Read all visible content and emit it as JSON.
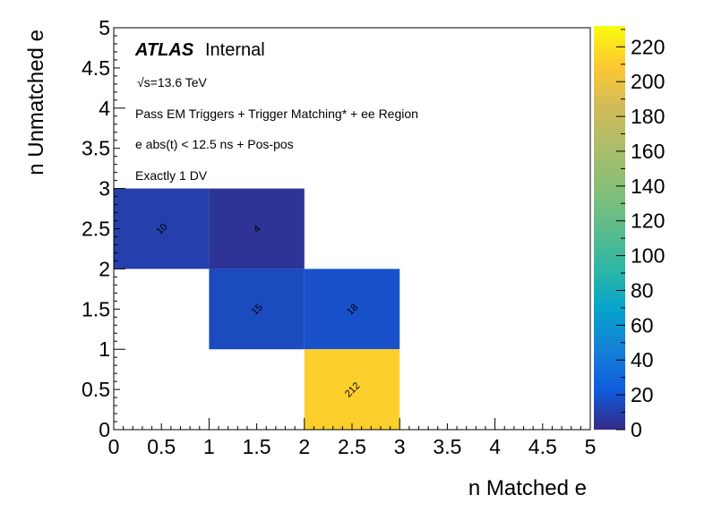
{
  "chart_data": {
    "type": "heatmap",
    "xlabel": "n Matched e",
    "ylabel": "n Unmatched e",
    "xlim": [
      0,
      5
    ],
    "ylim": [
      0,
      5
    ],
    "x_tick_labels": [
      "0",
      "0.5",
      "1",
      "1.5",
      "2",
      "2.5",
      "3",
      "3.5",
      "4",
      "4.5",
      "5"
    ],
    "y_tick_labels": [
      "0",
      "0.5",
      "1",
      "1.5",
      "2",
      "2.5",
      "3",
      "3.5",
      "4",
      "4.5",
      "5"
    ],
    "z_range": [
      0,
      232
    ],
    "z_tick_labels": [
      "0",
      "20",
      "40",
      "60",
      "80",
      "100",
      "120",
      "140",
      "160",
      "180",
      "200",
      "220"
    ],
    "colormap": "viridis",
    "cells": [
      {
        "x": [
          0,
          1
        ],
        "y": [
          2,
          3
        ],
        "value": 10
      },
      {
        "x": [
          1,
          2
        ],
        "y": [
          2,
          3
        ],
        "value": 4
      },
      {
        "x": [
          1,
          2
        ],
        "y": [
          1,
          2
        ],
        "value": 15
      },
      {
        "x": [
          2,
          3
        ],
        "y": [
          1,
          2
        ],
        "value": 18
      },
      {
        "x": [
          2,
          3
        ],
        "y": [
          0,
          1
        ],
        "value": 212
      }
    ],
    "annotations": {
      "atlas": "ATLAS",
      "internal": "Internal",
      "energy": "√s=13.6 TeV",
      "line1": "Pass EM Triggers + Trigger Matching* + ee Region",
      "line2": "e abs(t) < 12.5 ns + Pos-pos",
      "line3": "Exactly 1 DV"
    },
    "colors": {
      "low": "#352a87",
      "high": "#f9fb0e"
    }
  }
}
